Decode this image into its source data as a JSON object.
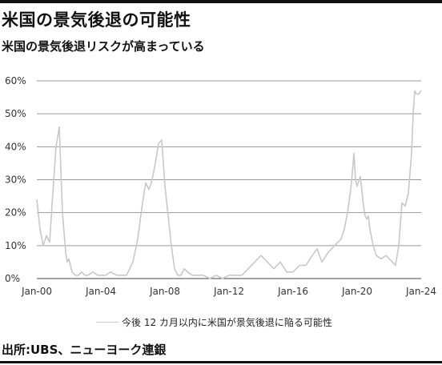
{
  "title": "米国の景気後退の可能性",
  "subtitle": "米国の景気後退リスクが高まっている",
  "source": "出所:UBS、ニューヨーク連銀",
  "chart_data": {
    "type": "line",
    "title": "米国の景気後退の可能性",
    "subtitle": "米国の景気後退リスクが高まっている",
    "xlabel": "",
    "ylabel": "",
    "y_unit": "%",
    "ylim": [
      0,
      60
    ],
    "y_ticks": [
      0,
      10,
      20,
      30,
      40,
      50,
      60
    ],
    "y_tick_labels": [
      "0%",
      "10%",
      "20%",
      "30%",
      "40%",
      "50%",
      "60%"
    ],
    "xlim": [
      2000,
      2024
    ],
    "x_ticks": [
      2000,
      2004,
      2008,
      2012,
      2016,
      2020,
      2024
    ],
    "x_tick_labels": [
      "Jan-00",
      "Jan-04",
      "Jan-08",
      "Jan-12",
      "Jan-16",
      "Jan-20",
      "Jan-24"
    ],
    "grid": "horizontal",
    "legend_position": "bottom",
    "color": "#c8c8c8",
    "series": [
      {
        "name": "今後 12 カ月以内に米国が景気後退に陥る可能性",
        "x": [
          2000.0,
          2000.2,
          2000.4,
          2000.6,
          2000.8,
          2001.0,
          2001.2,
          2001.4,
          2001.6,
          2001.8,
          2001.9,
          2002.0,
          2002.2,
          2002.4,
          2002.6,
          2002.8,
          2003.0,
          2003.2,
          2003.5,
          2003.8,
          2004.0,
          2004.3,
          2004.6,
          2005.0,
          2005.3,
          2005.6,
          2006.0,
          2006.3,
          2006.6,
          2006.8,
          2007.0,
          2007.2,
          2007.4,
          2007.6,
          2007.8,
          2008.0,
          2008.2,
          2008.4,
          2008.6,
          2008.8,
          2009.0,
          2009.2,
          2009.4,
          2009.7,
          2010.0,
          2010.4,
          2010.8,
          2011.2,
          2011.6,
          2012.0,
          2012.4,
          2012.8,
          2013.2,
          2013.6,
          2014.0,
          2014.4,
          2014.8,
          2015.2,
          2015.6,
          2016.0,
          2016.4,
          2016.8,
          2017.2,
          2017.5,
          2017.8,
          2018.2,
          2018.6,
          2019.0,
          2019.2,
          2019.4,
          2019.6,
          2019.7,
          2019.8,
          2019.9,
          2020.0,
          2020.2,
          2020.4,
          2020.5,
          2020.6,
          2020.7,
          2020.8,
          2021.0,
          2021.2,
          2021.5,
          2021.8,
          2022.0,
          2022.2,
          2022.4,
          2022.6,
          2022.8,
          2023.0,
          2023.2,
          2023.4,
          2023.5,
          2023.6,
          2023.7,
          2023.85,
          2024.0
        ],
        "values": [
          24,
          15,
          10,
          13,
          11,
          26,
          40,
          46,
          20,
          8,
          5,
          6,
          2,
          1,
          1,
          2,
          1,
          1,
          2,
          1,
          1,
          1,
          2,
          1,
          1,
          1,
          5,
          12,
          23,
          29,
          27,
          30,
          35,
          41,
          42,
          28,
          19,
          10,
          3,
          1,
          1,
          3,
          2,
          1,
          1,
          1,
          0,
          1,
          0,
          1,
          1,
          1,
          3,
          5,
          7,
          5,
          3,
          5,
          2,
          2,
          4,
          4,
          7,
          9,
          5,
          8,
          10,
          12,
          15,
          20,
          27,
          32,
          38,
          30,
          28,
          31,
          22,
          19,
          18,
          19,
          15,
          10,
          7,
          6,
          7,
          6,
          5,
          4,
          10,
          23,
          22,
          26,
          38,
          50,
          57,
          56,
          56,
          57
        ]
      }
    ]
  }
}
